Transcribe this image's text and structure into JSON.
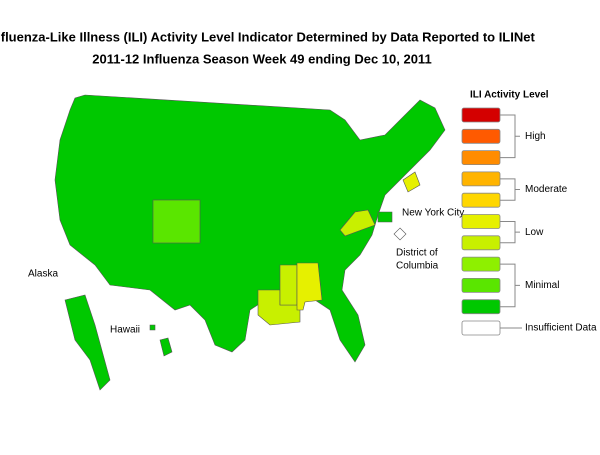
{
  "header": {
    "title": "Influenza-Like Illness (ILI) Activity Level Indicator Determined by Data Reported to ILINet",
    "subtitle": "2011-12  Influenza Season Week  49 ending Dec 10, 2011"
  },
  "map": {
    "labels": [
      "Alaska",
      "Hawaii",
      "New York City",
      "District of",
      "Columbia"
    ]
  },
  "legend": {
    "title": "ILI Activity Level",
    "groups": [
      {
        "label": "High",
        "colors": [
          "#d40000",
          "#ff5a00",
          "#ff8c00"
        ]
      },
      {
        "label": "Moderate",
        "colors": [
          "#ffb400",
          "#ffd700"
        ]
      },
      {
        "label": "Low",
        "colors": [
          "#e6f000",
          "#c8f000"
        ]
      },
      {
        "label": "Minimal",
        "colors": [
          "#8ef000",
          "#5ae600",
          "#00c800"
        ]
      },
      {
        "label": "Insufficient Data",
        "colors": [
          "#ffffff"
        ]
      }
    ]
  }
}
